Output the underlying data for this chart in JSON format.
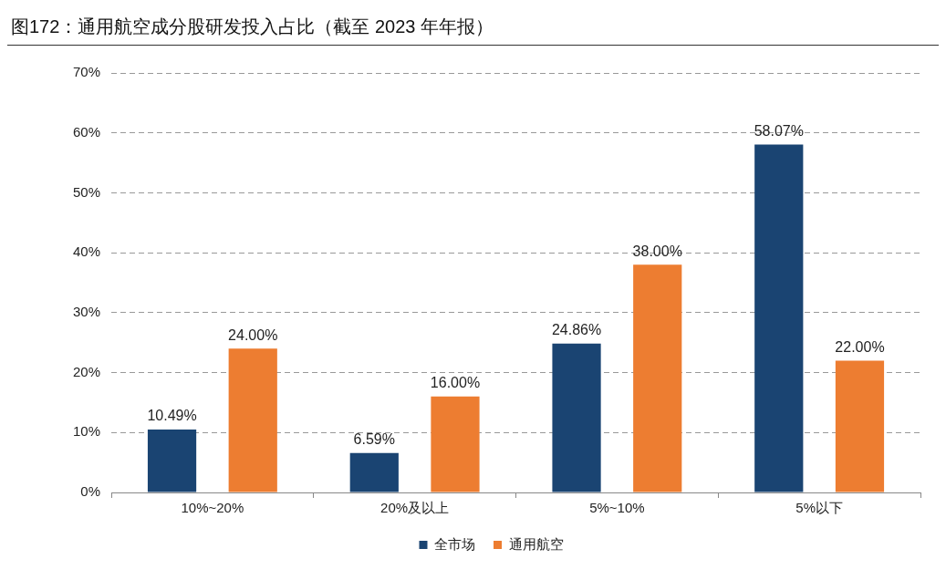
{
  "chart_data": {
    "type": "bar",
    "title": "图172：通用航空成分股研发投入占比（截至 2023 年年报）",
    "categories": [
      "10%~20%",
      "20%及以上",
      "5%~10%",
      "5%以下"
    ],
    "series": [
      {
        "name": "全市场",
        "color": "#1a4472",
        "values": [
          10.49,
          6.59,
          24.86,
          58.07
        ],
        "value_labels": [
          "10.49%",
          "6.59%",
          "24.86%",
          "58.07%"
        ]
      },
      {
        "name": "通用航空",
        "color": "#ed7d31",
        "values": [
          24,
          16,
          38,
          22
        ],
        "value_labels": [
          "24.00%",
          "16.00%",
          "38.00%",
          "22.00%"
        ]
      }
    ],
    "ylim": [
      0,
      70
    ],
    "yticks": [
      {
        "value": 0,
        "label": "0%"
      },
      {
        "value": 10,
        "label": "10%"
      },
      {
        "value": 20,
        "label": "20%"
      },
      {
        "value": 30,
        "label": "30%"
      },
      {
        "value": 40,
        "label": "40%"
      },
      {
        "value": 50,
        "label": "50%"
      },
      {
        "value": 60,
        "label": "60%"
      },
      {
        "value": 70,
        "label": "70%"
      }
    ],
    "grid": "y",
    "legend": "bottom"
  }
}
